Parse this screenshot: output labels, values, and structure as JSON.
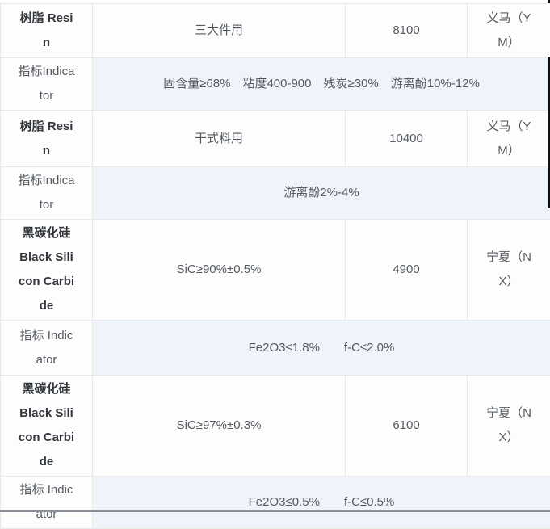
{
  "colors": {
    "table_border": "#e8e8e8",
    "product_name_text": "#33373d",
    "body_text": "#555a61",
    "row_bg": "#fdfdfd",
    "indicator_row_bg": "#eff4fb",
    "bottom_bar": "#8b9096",
    "right_strip": "#111111"
  },
  "rows": [
    {
      "type": "product",
      "name": "树脂 Resin",
      "spec": "三大件用",
      "price": "8100",
      "origin": "义马（YM）"
    },
    {
      "type": "indicator",
      "label": "指标Indicator",
      "detail": "固含量≥68%　粘度400-900　残炭≥30%　游离酚10%-12%"
    },
    {
      "type": "product",
      "name": "树脂 Resin",
      "spec": "干式料用",
      "price": "10400",
      "origin": "义马（YM）"
    },
    {
      "type": "indicator",
      "label": "指标Indicator",
      "detail": "游离酚2%-4%"
    },
    {
      "type": "product",
      "name": "黑碳化硅 Black Silicon Carbide",
      "spec": "SiC≥90%±0.5%",
      "price": "4900",
      "origin": "宁夏（NX）"
    },
    {
      "type": "indicator",
      "label": "指标 Indicator",
      "detail": "Fe2O3≤1.8%　　f-C≤2.0%"
    },
    {
      "type": "product",
      "name": "黑碳化硅 Black Silicon Carbide",
      "spec": "SiC≥97%±0.3%",
      "price": "6100",
      "origin": "宁夏（NX）"
    },
    {
      "type": "indicator",
      "label": "指标 Indicator",
      "detail": "Fe2O3≤0.5%　　f-C≤0.5%"
    }
  ]
}
